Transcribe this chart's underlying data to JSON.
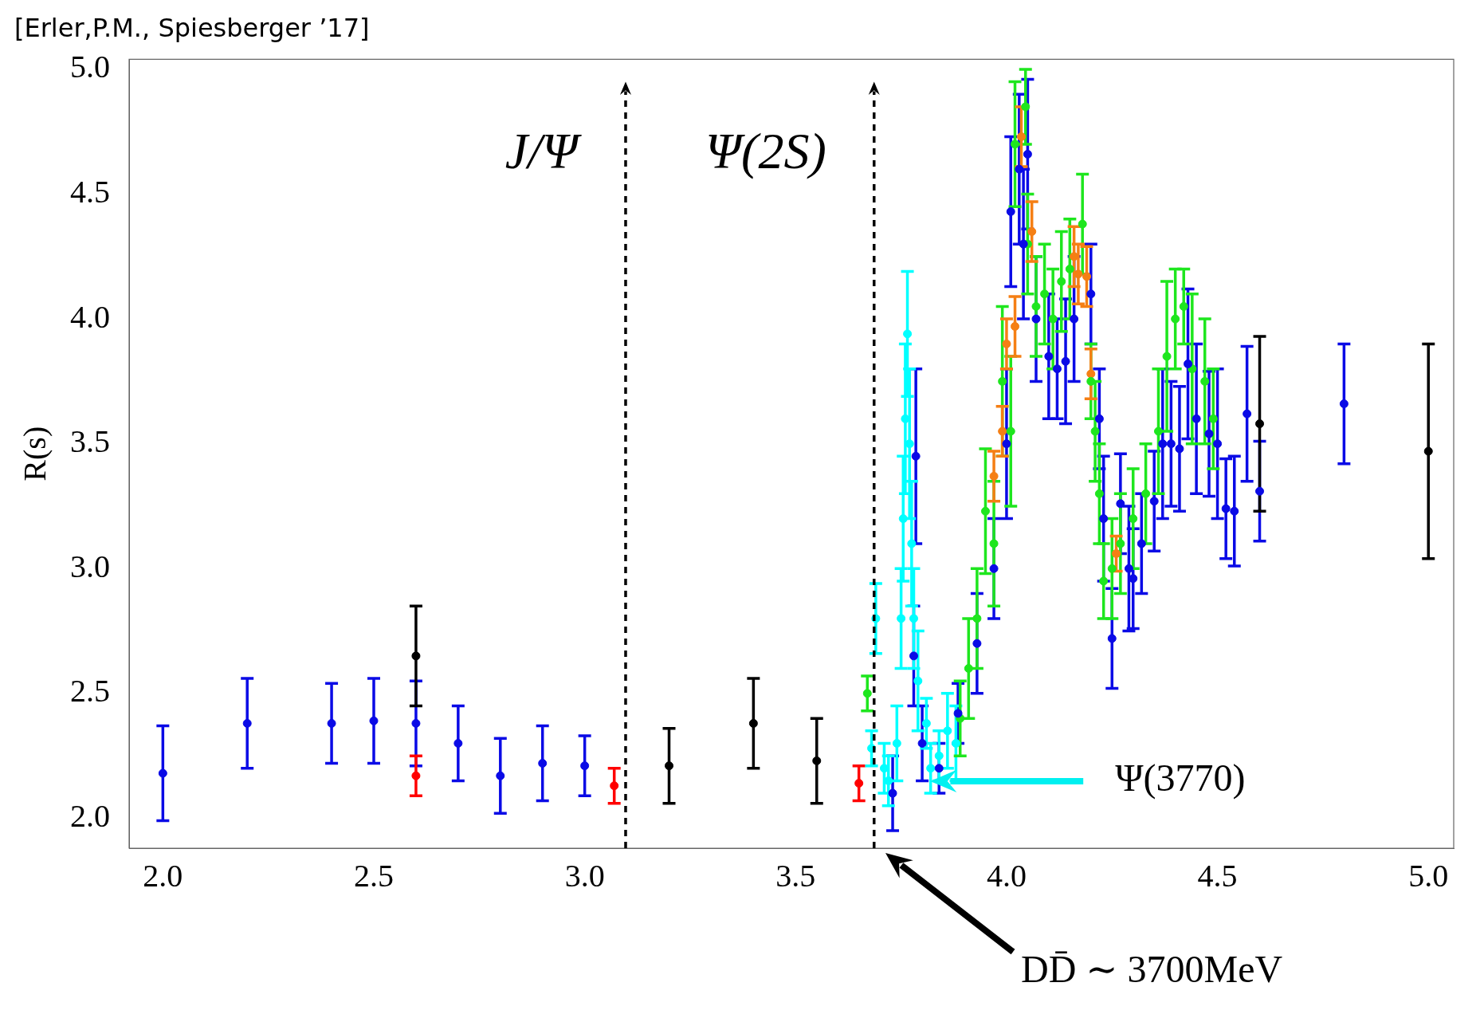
{
  "chart_data": {
    "type": "scatter",
    "title": "[Erler,P.M., Spiesberger ’17]",
    "ylabel": "R(s)",
    "xlim": [
      1.92,
      5.06
    ],
    "ylim": [
      1.88,
      5.04
    ],
    "xticks": [
      {
        "value": 2,
        "label": "2.0"
      },
      2.5,
      {
        "value": 3,
        "label": "3.0"
      },
      3.5,
      {
        "value": 4,
        "label": "4.0"
      },
      4.5,
      {
        "value": 5,
        "label": "5.0"
      }
    ],
    "yticks": [
      {
        "value": 2,
        "label": "2.0"
      },
      2.5,
      {
        "value": 3,
        "label": "3.0"
      },
      3.5,
      {
        "value": 4,
        "label": "4.0"
      },
      4.5,
      {
        "value": 5,
        "label": "5.0"
      }
    ],
    "grid": false,
    "legend": false,
    "marker": "circle",
    "series": [
      {
        "color": "#0a0ae6",
        "x": [
          2.0,
          2.2,
          2.4,
          2.5,
          2.6,
          2.7,
          2.8,
          2.9,
          3.0,
          3.73,
          3.785,
          3.78,
          3.8,
          3.84,
          3.885,
          3.93,
          3.97,
          4.0,
          4.01,
          4.03,
          4.04,
          4.05,
          4.07,
          4.1,
          4.12,
          4.14,
          4.16,
          4.2,
          4.22,
          4.23,
          4.25,
          4.27,
          4.29,
          4.3,
          4.32,
          4.35,
          4.37,
          4.39,
          4.41,
          4.43,
          4.45,
          4.48,
          4.5,
          4.52,
          4.54,
          4.57,
          4.6,
          4.8
        ],
        "values": [
          2.18,
          2.38,
          2.38,
          2.39,
          2.38,
          2.3,
          2.17,
          2.22,
          2.21,
          2.1,
          3.45,
          2.65,
          2.3,
          2.2,
          2.42,
          2.7,
          3.0,
          3.5,
          4.43,
          4.6,
          4.3,
          4.66,
          4.0,
          3.85,
          3.8,
          3.83,
          4.0,
          4.1,
          3.6,
          3.2,
          2.72,
          3.26,
          3.0,
          2.96,
          3.1,
          3.27,
          3.5,
          3.5,
          3.48,
          3.82,
          3.6,
          3.54,
          3.5,
          3.24,
          3.23,
          3.62,
          3.31,
          3.66
        ],
        "errors": [
          0.19,
          0.18,
          0.16,
          0.17,
          0.17,
          0.15,
          0.15,
          0.15,
          0.12,
          0.15,
          0.35,
          0.2,
          0.15,
          0.1,
          0.12,
          0.2,
          0.2,
          0.3,
          0.3,
          0.3,
          0.3,
          0.3,
          0.25,
          0.25,
          0.2,
          0.25,
          0.25,
          0.2,
          0.2,
          0.25,
          0.2,
          0.2,
          0.25,
          0.2,
          0.2,
          0.2,
          0.3,
          0.25,
          0.25,
          0.3,
          0.3,
          0.25,
          0.3,
          0.2,
          0.22,
          0.27,
          0.2,
          0.24
        ]
      },
      {
        "color": "#000000",
        "x": [
          2.6,
          3.2,
          3.4,
          3.55,
          4.6,
          5.0
        ],
        "values": [
          2.65,
          2.21,
          2.38,
          2.23,
          3.58,
          3.47
        ],
        "errors": [
          0.2,
          0.15,
          0.18,
          0.17,
          0.35,
          0.43
        ]
      },
      {
        "color": "#ff0000",
        "x": [
          2.6,
          3.07,
          3.65
        ],
        "values": [
          2.17,
          2.13,
          2.14
        ],
        "errors": [
          0.08,
          0.07,
          0.07
        ]
      },
      {
        "color": "#00ffff",
        "x": [
          3.68,
          3.69,
          3.71,
          3.72,
          3.74,
          3.75,
          3.755,
          3.76,
          3.765,
          3.77,
          3.775,
          3.78,
          3.79,
          3.81,
          3.82,
          3.84,
          3.86,
          3.88
        ],
        "values": [
          2.28,
          2.8,
          2.2,
          2.15,
          2.3,
          2.8,
          3.2,
          3.6,
          3.94,
          3.5,
          3.1,
          2.8,
          2.55,
          2.38,
          2.2,
          2.25,
          2.35,
          2.3
        ],
        "errors": [
          0.07,
          0.14,
          0.1,
          0.1,
          0.15,
          0.2,
          0.25,
          0.3,
          0.25,
          0.3,
          0.25,
          0.2,
          0.2,
          0.1,
          0.1,
          0.1,
          0.15,
          0.15
        ]
      },
      {
        "color": "#1ee61e",
        "x": [
          3.67,
          3.89,
          3.91,
          3.93,
          3.95,
          3.97,
          3.99,
          4.01,
          4.02,
          4.045,
          4.05,
          4.07,
          4.09,
          4.11,
          4.13,
          4.15,
          4.18,
          4.2,
          4.21,
          4.22,
          4.23,
          4.25,
          4.27,
          4.3,
          4.33,
          4.36,
          4.38,
          4.4,
          4.42,
          4.44,
          4.47,
          4.49
        ],
        "values": [
          2.5,
          2.4,
          2.6,
          2.8,
          3.23,
          3.1,
          3.75,
          3.55,
          4.7,
          4.85,
          4.3,
          4.05,
          4.1,
          4.0,
          4.15,
          4.2,
          4.38,
          3.75,
          3.55,
          3.3,
          2.95,
          3.0,
          3.1,
          3.2,
          3.3,
          3.55,
          3.85,
          4.0,
          4.05,
          3.8,
          3.75,
          3.6
        ],
        "errors": [
          0.07,
          0.15,
          0.2,
          0.2,
          0.25,
          0.25,
          0.3,
          0.3,
          0.25,
          0.15,
          0.2,
          0.2,
          0.2,
          0.2,
          0.2,
          0.2,
          0.2,
          0.15,
          0.2,
          0.2,
          0.15,
          0.2,
          0.2,
          0.2,
          0.2,
          0.25,
          0.3,
          0.2,
          0.15,
          0.3,
          0.25,
          0.2
        ]
      },
      {
        "color": "#f57f14",
        "x": [
          3.97,
          3.99,
          4.0,
          4.02,
          4.035,
          4.06,
          4.16,
          4.17,
          4.19,
          4.2,
          4.26
        ],
        "values": [
          3.37,
          3.55,
          3.9,
          3.97,
          4.73,
          4.35,
          4.25,
          4.18,
          4.17,
          3.78,
          3.06
        ],
        "errors": [
          0.1,
          0.1,
          0.1,
          0.12,
          0.12,
          0.12,
          0.12,
          0.12,
          0.12,
          0.1,
          0.07
        ]
      }
    ],
    "ref_lines": [
      {
        "axis": "x",
        "value": 3.097,
        "label": "J/Ψ",
        "color": "#000000",
        "line_style": "dashed"
      },
      {
        "axis": "x",
        "value": 3.686,
        "label": "Ψ(2S)",
        "color": "#000000",
        "line_style": "dashed"
      }
    ],
    "annotations": [
      "Ψ(3770)",
      "DD̄ ∼ 3700MeV"
    ]
  }
}
